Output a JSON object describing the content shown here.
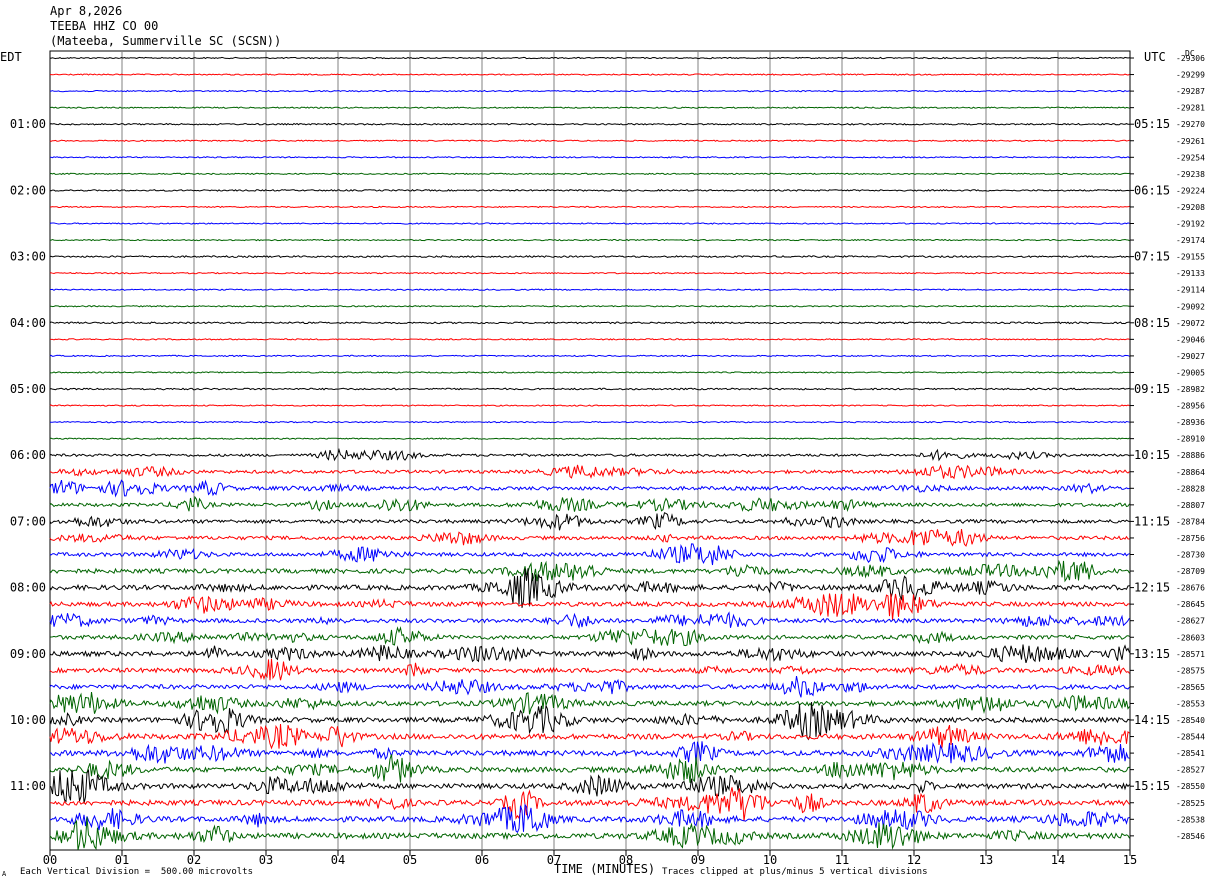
{
  "header": {
    "date": "Apr 8,2026",
    "station": "TEEBA HHZ CO 00",
    "location": "(Mateeba, Summerville SC (SCSN))"
  },
  "tz_left": "EDT",
  "tz_right": "UTC",
  "dc_label": "DC",
  "footer": {
    "xlabel": "TIME (MINUTES)",
    "scale_note": "Each Vertical Division =  500.00 microvolts",
    "clip_note": "Traces clipped at plus/minus 5 vertical divisions",
    "corner_mark": "A"
  },
  "colors": {
    "trace_cycle": [
      "#000000",
      "#ff0000",
      "#0000ff",
      "#006400"
    ],
    "grid": "#808080"
  },
  "chart_data": {
    "type": "line",
    "title": "TEEBA HHZ CO 00",
    "xlabel": "TIME (MINUTES)",
    "x_ticks": [
      "00",
      "01",
      "02",
      "03",
      "04",
      "05",
      "06",
      "07",
      "08",
      "09",
      "10",
      "11",
      "12",
      "13",
      "14",
      "15"
    ],
    "x_range": [
      0,
      15
    ],
    "left_hour_labels": [
      "01:00",
      "02:00",
      "03:00",
      "04:00",
      "05:00",
      "06:00",
      "07:00",
      "08:00",
      "09:00",
      "10:00",
      "11:00"
    ],
    "right_hour_labels": [
      "05:15",
      "06:15",
      "07:15",
      "08:15",
      "09:15",
      "10:15",
      "11:15",
      "12:15",
      "13:15",
      "14:15",
      "15:15"
    ],
    "dc_offsets": [
      -29306,
      -29299,
      -29287,
      -29281,
      -29270,
      -29261,
      -29254,
      -29238,
      -29224,
      -29208,
      -29192,
      -29174,
      -29155,
      -29133,
      -29114,
      -29092,
      -29072,
      -29046,
      -29027,
      -29005,
      -28982,
      -28956,
      -28936,
      -28910,
      -28886,
      -28864,
      -28828,
      -28807,
      -28784,
      -28756,
      -28730,
      -28709,
      -28676,
      -28645,
      -28627,
      -28603,
      -28571,
      -28575,
      -28565,
      -28553,
      -28540,
      -28544,
      -28541,
      -28527,
      -28550,
      -28525,
      -28538,
      -28546
    ],
    "trace_activity": [
      0.6,
      0.6,
      0.6,
      0.6,
      0.7,
      0.6,
      0.6,
      0.6,
      0.7,
      0.6,
      0.6,
      0.6,
      0.8,
      0.6,
      0.6,
      0.6,
      0.8,
      0.6,
      0.6,
      0.6,
      0.8,
      0.6,
      0.6,
      0.6,
      1.2,
      1.6,
      1.8,
      1.7,
      1.8,
      1.8,
      1.8,
      2.2,
      2.4,
      2.2,
      2.0,
      2.0,
      2.4,
      2.2,
      2.2,
      2.4,
      2.4,
      2.6,
      2.6,
      2.5,
      2.5,
      2.6,
      2.6,
      2.7
    ],
    "scale_microvolts_per_division": 500.0
  }
}
